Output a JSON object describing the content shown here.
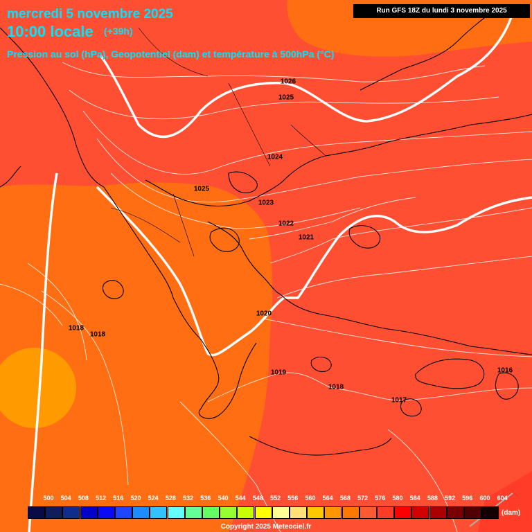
{
  "header": {
    "date": "mercredi 5 novembre 2025",
    "local_time": "10:00 locale",
    "lead": "(+39h)",
    "product": "Pression au sol (hPa), Geopotentiel (dam) et température à 500hPa (°C)",
    "run": "Run GFS 18Z du lundi 3 novembre 2025"
  },
  "pressure_labels": [
    "1026",
    "1025",
    "1024",
    "1025",
    "1023",
    "1022",
    "1021",
    "1020",
    "1019",
    "1018",
    "1018",
    "1018",
    "1017",
    "1016"
  ],
  "legend": {
    "values": [
      "500",
      "504",
      "508",
      "512",
      "516",
      "520",
      "524",
      "528",
      "532",
      "536",
      "540",
      "544",
      "548",
      "552",
      "556",
      "560",
      "564",
      "568",
      "572",
      "576",
      "580",
      "584",
      "588",
      "592",
      "596",
      "600",
      "604"
    ],
    "colors": [
      "#0a0a46",
      "#0f1e5a",
      "#0f2d8c",
      "#0000c8",
      "#0a0af5",
      "#1e46ff",
      "#1e8cff",
      "#32c3ff",
      "#64ffff",
      "#64ff96",
      "#64ff64",
      "#96ff32",
      "#c8ff00",
      "#ffff00",
      "#ffff96",
      "#ffe178",
      "#ffc800",
      "#ff9600",
      "#ff7800",
      "#ff5a32",
      "#ff3c28",
      "#ff0000",
      "#d20000",
      "#aa0000",
      "#780000",
      "#500000",
      "#140000"
    ],
    "unit": "(dam)"
  },
  "copyright": "Copyright 2025 Meteociel.fr"
}
